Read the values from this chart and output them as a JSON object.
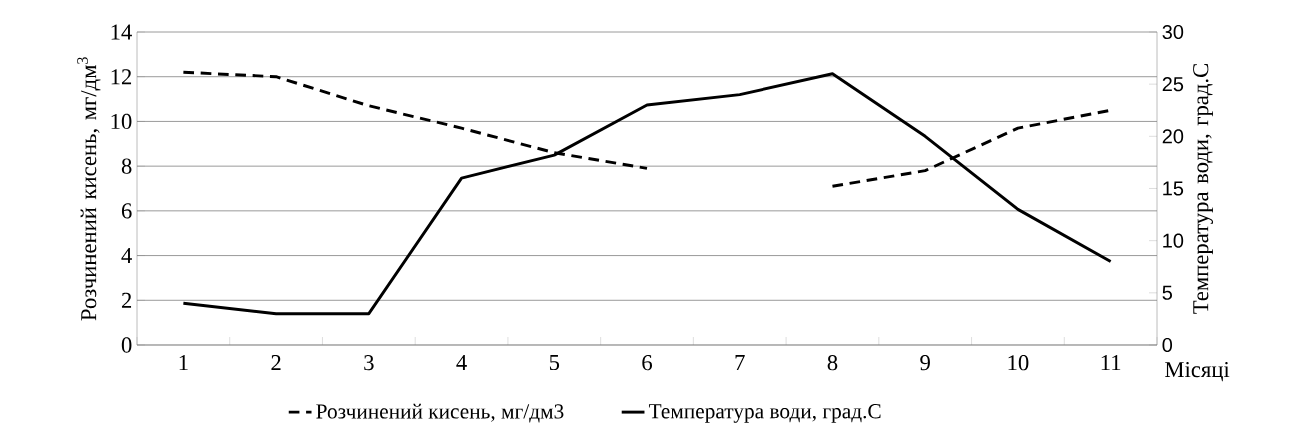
{
  "chart_data": {
    "type": "line",
    "xlabel": "Місяці",
    "ylabel": "Розчинений кисень, мг/дм$^{3}$",
    "y2label": "Температура води, град.С",
    "categories": [
      "1",
      "2",
      "3",
      "4",
      "5",
      "6",
      "7",
      "8",
      "9",
      "10",
      "11"
    ],
    "series": [
      {
        "name": "Розчинений кисень, мг/дм3",
        "color": "#000000",
        "line_style": "dashed",
        "values": [
          12.2,
          12.0,
          10.7,
          9.7,
          8.6,
          7.9,
          null,
          7.1,
          7.8,
          9.7,
          10.5
        ]
      },
      {
        "name": "Температура води, град.С",
        "color": "#000000",
        "line_style": "solid",
        "axis": "y2",
        "values": [
          4,
          3,
          3,
          16,
          18.2,
          23,
          24,
          26,
          20,
          13,
          8
        ]
      }
    ],
    "ylim": [
      0,
      14
    ],
    "yticks": [
      0,
      2,
      4,
      6,
      8,
      10,
      12,
      14
    ],
    "y2lim": [
      0,
      30
    ],
    "y2ticks": [
      0,
      5,
      10,
      15,
      20,
      25,
      30
    ],
    "grid": "y",
    "legend": "bottom",
    "marker": "none"
  }
}
